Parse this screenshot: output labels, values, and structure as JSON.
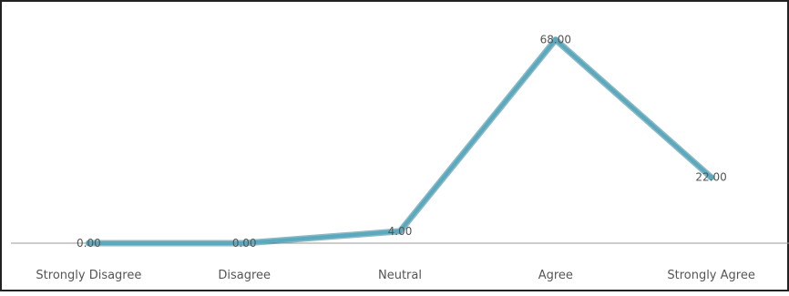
{
  "chart_data": {
    "type": "line",
    "categories": [
      "Strongly Disagree",
      "Disagree",
      "Neutral",
      "Agree",
      "Strongly Agree"
    ],
    "series": [
      {
        "values": [
          0.0,
          0.0,
          4.0,
          68.0,
          22.0
        ],
        "data_labels": [
          "0.00",
          "0.00",
          "4.00",
          "68.00",
          "22.00"
        ]
      }
    ],
    "title": "",
    "xlabel": "",
    "ylabel": "",
    "ylim": [
      0,
      70
    ],
    "grid": false,
    "legend": "none"
  },
  "colors": {
    "line": "#5aa9bf",
    "line_shadow": "#2f7f93",
    "frame": "#222222",
    "axis": "#9a9a9a",
    "text": "#555555"
  }
}
